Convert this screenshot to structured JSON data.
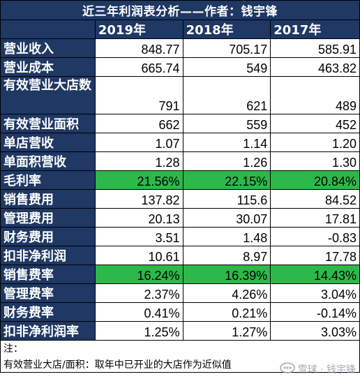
{
  "title": "近三年利润表分析——作者：钱宇锋",
  "years": [
    "2019年",
    "2018年",
    "2017年"
  ],
  "rows": [
    {
      "label": "营业收入",
      "values": [
        "848.77",
        "705.17",
        "585.91"
      ],
      "highlight": false
    },
    {
      "label": "营业成本",
      "values": [
        "665.74",
        "549",
        "463.82"
      ],
      "highlight": false
    },
    {
      "label": "有效营业大店数",
      "values": [
        "791",
        "621",
        "489"
      ],
      "highlight": false
    },
    {
      "label": "有效营业面积",
      "values": [
        "662",
        "559",
        "452"
      ],
      "highlight": false
    },
    {
      "label": "单店营收",
      "values": [
        "1.07",
        "1.14",
        "1.20"
      ],
      "highlight": false
    },
    {
      "label": "单面积营收",
      "values": [
        "1.28",
        "1.26",
        "1.30"
      ],
      "highlight": false
    },
    {
      "label": "毛利率",
      "values": [
        "21.56%",
        "22.15%",
        "20.84%"
      ],
      "highlight": true
    },
    {
      "label": "销售费用",
      "values": [
        "137.82",
        "115.6",
        "84.52"
      ],
      "highlight": false
    },
    {
      "label": "管理费用",
      "values": [
        "20.13",
        "30.07",
        "17.81"
      ],
      "highlight": false
    },
    {
      "label": "财务费用",
      "values": [
        "3.51",
        "1.48",
        "-0.83"
      ],
      "highlight": false
    },
    {
      "label": "扣非净利润",
      "values": [
        "10.61",
        "8.97",
        "17.78"
      ],
      "highlight": false
    },
    {
      "label": "销售费率",
      "values": [
        "16.24%",
        "16.39%",
        "14.43%"
      ],
      "highlight": true
    },
    {
      "label": "管理费率",
      "values": [
        "2.37%",
        "4.26%",
        "3.04%"
      ],
      "highlight": false
    },
    {
      "label": "财务费率",
      "values": [
        "0.41%",
        "0.21%",
        "-0.14%"
      ],
      "highlight": false
    },
    {
      "label": "扣非净利润率",
      "values": [
        "1.25%",
        "1.27%",
        "3.03%"
      ],
      "highlight": false
    }
  ],
  "notes": {
    "heading": "注：",
    "line1": "有效营业大店/面积：取年中已开业的大店作为近似值"
  },
  "watermark": {
    "text": "雪球 · 钱宇锋",
    "icon": "xueqiu-logo-icon"
  },
  "colors": {
    "header_bg": "#1f3864",
    "highlight": "#2db84a"
  }
}
